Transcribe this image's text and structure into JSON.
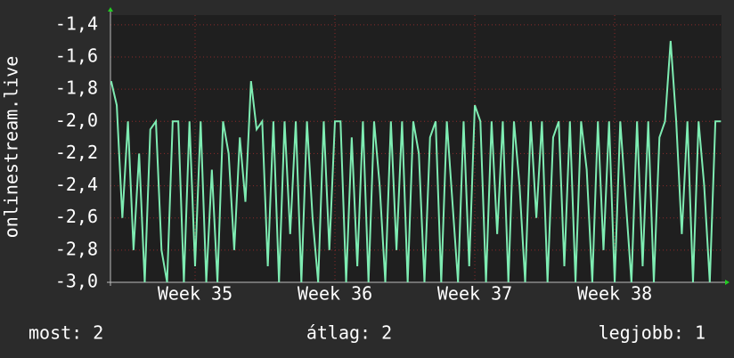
{
  "chart_data": {
    "type": "line",
    "y_label": "onlinestream.live",
    "ylim": [
      -3.0,
      -1.34
    ],
    "yticks": [
      {
        "value": -1.4,
        "label": "-1,4"
      },
      {
        "value": -1.6,
        "label": "-1,6"
      },
      {
        "value": -1.8,
        "label": "-1,8"
      },
      {
        "value": -2.0,
        "label": "-2,0"
      },
      {
        "value": -2.2,
        "label": "-2,2"
      },
      {
        "value": -2.4,
        "label": "-2,4"
      },
      {
        "value": -2.6,
        "label": "-2,6"
      },
      {
        "value": -2.8,
        "label": "-2,8"
      },
      {
        "value": -3.0,
        "label": "-3,0"
      }
    ],
    "xlim": [
      34.895,
      39.264
    ],
    "xticks": [
      {
        "value": 35.5,
        "label": "Week 35"
      },
      {
        "value": 36.5,
        "label": "Week 36"
      },
      {
        "value": 37.5,
        "label": "Week 37"
      },
      {
        "value": 38.5,
        "label": "Week 38"
      }
    ],
    "grid": true,
    "x": [
      34.9,
      34.94,
      34.98,
      35.02,
      35.06,
      35.1,
      35.14,
      35.18,
      35.22,
      35.26,
      35.3,
      35.34,
      35.38,
      35.42,
      35.46,
      35.5,
      35.54,
      35.58,
      35.62,
      35.66,
      35.7,
      35.74,
      35.78,
      35.82,
      35.86,
      35.9,
      35.94,
      35.98,
      36.02,
      36.06,
      36.1,
      36.14,
      36.18,
      36.22,
      36.26,
      36.3,
      36.34,
      36.38,
      36.42,
      36.46,
      36.5,
      36.54,
      36.58,
      36.62,
      36.66,
      36.7,
      36.74,
      36.78,
      36.82,
      36.86,
      36.9,
      36.94,
      36.98,
      37.02,
      37.06,
      37.1,
      37.14,
      37.18,
      37.22,
      37.26,
      37.3,
      37.34,
      37.38,
      37.42,
      37.46,
      37.5,
      37.54,
      37.58,
      37.62,
      37.66,
      37.7,
      37.74,
      37.78,
      37.82,
      37.86,
      37.9,
      37.94,
      37.98,
      38.02,
      38.06,
      38.1,
      38.14,
      38.18,
      38.22,
      38.26,
      38.3,
      38.34,
      38.38,
      38.42,
      38.46,
      38.5,
      38.54,
      38.58,
      38.62,
      38.66,
      38.7,
      38.74,
      38.78,
      38.82,
      38.86,
      38.9,
      38.94,
      38.98,
      39.02,
      39.06,
      39.1,
      39.14,
      39.18,
      39.22,
      39.26
    ],
    "series": [
      {
        "name": "onlinestream.live",
        "color": "#7eecb2",
        "values": [
          -1.75,
          -1.9,
          -2.6,
          -2.0,
          -2.8,
          -2.2,
          -3.0,
          -2.05,
          -2.0,
          -2.8,
          -3.0,
          -2.0,
          -2.0,
          -3.0,
          -2.0,
          -2.9,
          -2.0,
          -3.0,
          -2.3,
          -3.0,
          -2.0,
          -2.2,
          -2.8,
          -2.1,
          -2.5,
          -1.75,
          -2.05,
          -2.0,
          -2.9,
          -2.0,
          -3.0,
          -2.0,
          -2.7,
          -2.0,
          -3.0,
          -2.0,
          -2.6,
          -3.0,
          -2.0,
          -2.8,
          -2.0,
          -2.0,
          -3.0,
          -2.1,
          -2.9,
          -2.0,
          -3.0,
          -2.0,
          -2.4,
          -3.0,
          -2.0,
          -2.8,
          -2.0,
          -3.0,
          -2.0,
          -2.2,
          -3.0,
          -2.1,
          -2.0,
          -3.0,
          -2.0,
          -2.5,
          -3.0,
          -2.0,
          -2.9,
          -1.9,
          -2.0,
          -3.0,
          -2.0,
          -2.7,
          -2.0,
          -3.0,
          -2.0,
          -2.4,
          -3.0,
          -2.0,
          -2.6,
          -2.0,
          -3.0,
          -2.1,
          -2.0,
          -2.9,
          -2.0,
          -3.0,
          -2.0,
          -2.3,
          -3.0,
          -2.0,
          -2.8,
          -2.0,
          -3.0,
          -2.0,
          -2.5,
          -3.0,
          -2.0,
          -2.9,
          -2.0,
          -3.0,
          -2.1,
          -2.0,
          -1.5,
          -2.0,
          -2.7,
          -2.0,
          -3.0,
          -2.0,
          -2.4,
          -3.0,
          -2.0,
          -2.0
        ]
      }
    ],
    "footer": {
      "current": "most: 2",
      "average": "átlag: 2",
      "best": "legjobb: 1"
    }
  }
}
